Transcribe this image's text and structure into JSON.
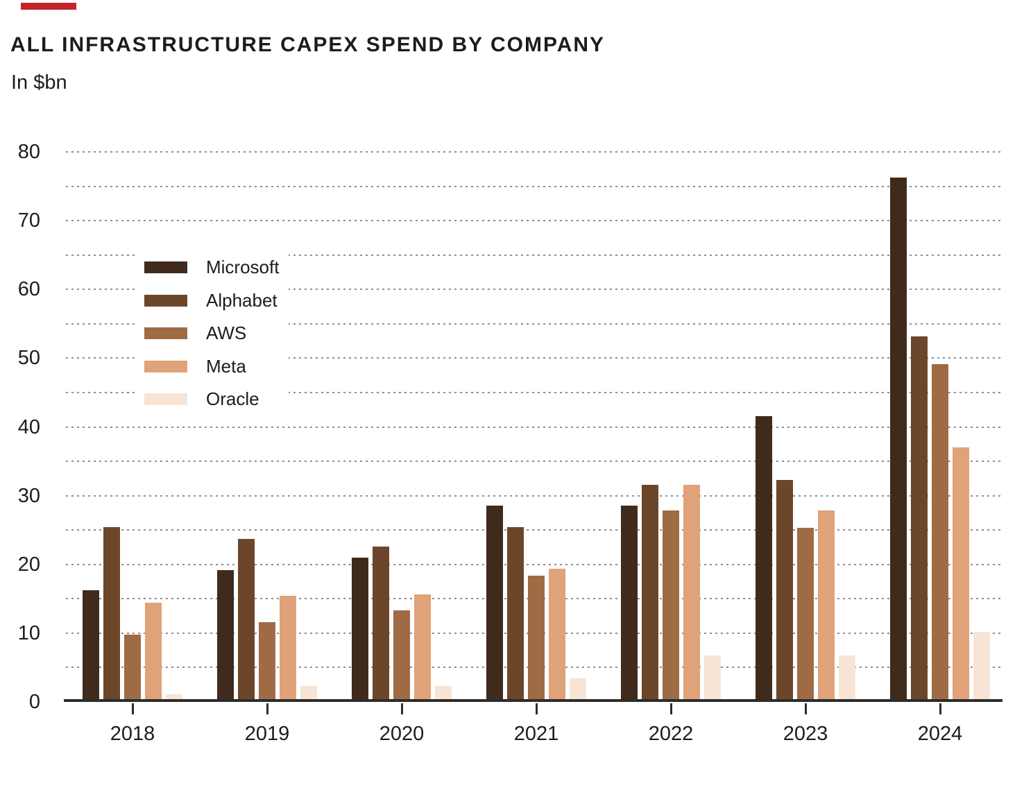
{
  "accent_bar": {
    "color": "#c0262c"
  },
  "title": "ALL INFRASTRUCTURE CAPEX SPEND BY COMPANY",
  "subtitle": "In $bn",
  "chart_data": {
    "type": "bar",
    "title": "ALL INFRASTRUCTURE CAPEX SPEND BY COMPANY",
    "subtitle_unit": "In $bn",
    "categories": [
      "2018",
      "2019",
      "2020",
      "2021",
      "2022",
      "2023",
      "2024"
    ],
    "series": [
      {
        "name": "Microsoft",
        "color": "#3f2a1c",
        "values": [
          16,
          19,
          20.8,
          28.4,
          28.4,
          41.4,
          76.1
        ]
      },
      {
        "name": "Alphabet",
        "color": "#6c462a",
        "values": [
          25.2,
          23.5,
          22.4,
          25.2,
          31.4,
          32.1,
          53
        ]
      },
      {
        "name": "AWS",
        "color": "#9f6b45",
        "values": [
          9.6,
          11.4,
          13.1,
          18.2,
          27.6,
          25.1,
          48.9
        ]
      },
      {
        "name": "Meta",
        "color": "#e0a278",
        "values": [
          14.2,
          15.2,
          15.4,
          19.2,
          31.4,
          27.6,
          36.8
        ]
      },
      {
        "name": "Oracle",
        "color": "#f8e4d5",
        "values": [
          0.9,
          2.1,
          2.1,
          3.2,
          6.6,
          6.6,
          10
        ]
      }
    ],
    "xlabel": "",
    "ylabel": "",
    "yticks": [
      0,
      10,
      20,
      30,
      40,
      50,
      60,
      70,
      80
    ],
    "ylim": [
      0,
      80
    ],
    "gridline_step": 5,
    "grid": "dotted-horizontal",
    "legend_position": "upper-left-inside",
    "gridline_color": "#8d8d8d",
    "baseline_color": "#2c2c2c",
    "text_color": "#1c1c1c"
  }
}
